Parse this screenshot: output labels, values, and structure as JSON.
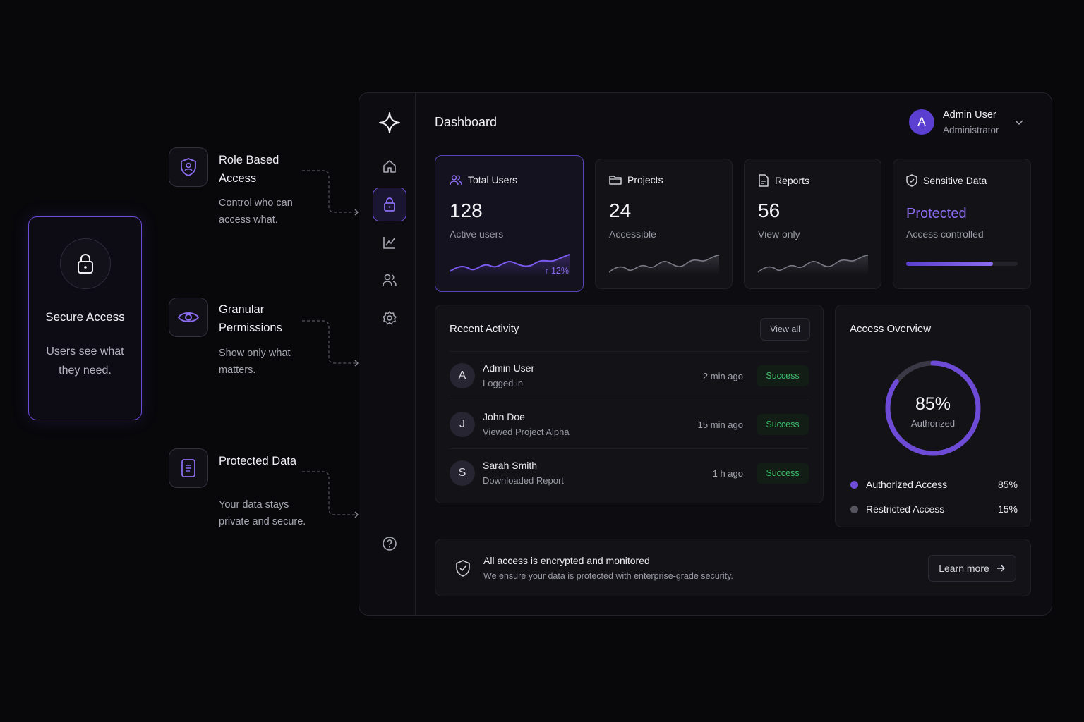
{
  "hero": {
    "title": "Secure Access",
    "description": "Users see what they need."
  },
  "features": [
    {
      "title": "Role Based Access",
      "description": "Control who can access what.",
      "icon": "shield-user-icon"
    },
    {
      "title": "Granular Permissions",
      "description": "Show only what matters.",
      "icon": "eye-icon"
    },
    {
      "title": "Protected Data",
      "description": "Your data stays private and secure.",
      "icon": "document-icon"
    }
  ],
  "header": {
    "title": "Dashboard",
    "user_initial": "A",
    "user_name": "Admin User",
    "user_role": "Administrator"
  },
  "sidebar": {
    "items": [
      "logo-icon",
      "home-icon",
      "lock-icon",
      "chart-icon",
      "users-icon",
      "settings-icon",
      "help-icon"
    ],
    "active": "lock-icon"
  },
  "stats": [
    {
      "label": "Total Users",
      "value": "128",
      "sub": "Active users",
      "trend": "↑ 12%",
      "icon": "users-icon"
    },
    {
      "label": "Projects",
      "value": "24",
      "sub": "Accessible",
      "icon": "folder-icon"
    },
    {
      "label": "Reports",
      "value": "56",
      "sub": "View only",
      "icon": "report-icon"
    },
    {
      "label": "Sensitive Data",
      "value": "Protected",
      "sub": "Access controlled",
      "icon": "shield-check-icon",
      "progress": 0.78
    }
  ],
  "activity": {
    "title": "Recent Activity",
    "view_all": "View all",
    "rows": [
      {
        "initial": "A",
        "name": "Admin User",
        "action": "Logged in",
        "time": "2 min ago",
        "status": "Success"
      },
      {
        "initial": "J",
        "name": "John Doe",
        "action": "Viewed Project Alpha",
        "time": "15 min ago",
        "status": "Success"
      },
      {
        "initial": "S",
        "name": "Sarah Smith",
        "action": "Downloaded Report",
        "time": "1 h ago",
        "status": "Success"
      }
    ]
  },
  "overview": {
    "title": "Access Overview",
    "center_value": "85%",
    "center_label": "Authorized",
    "authorized_fraction": 0.85,
    "legend": [
      {
        "label": "Authorized Access",
        "value": "85%",
        "color": "#6d4bd6"
      },
      {
        "label": "Restricted Access",
        "value": "15%",
        "color": "#55545e"
      }
    ]
  },
  "footer": {
    "title": "All access is encrypted and monitored",
    "description": "We ensure your data is protected with enterprise-grade security.",
    "button": "Learn more"
  },
  "colors": {
    "accent": "#6d4bd6",
    "accent_light": "#8b6cf0",
    "success": "#3fbf6a",
    "background": "#08080b"
  }
}
